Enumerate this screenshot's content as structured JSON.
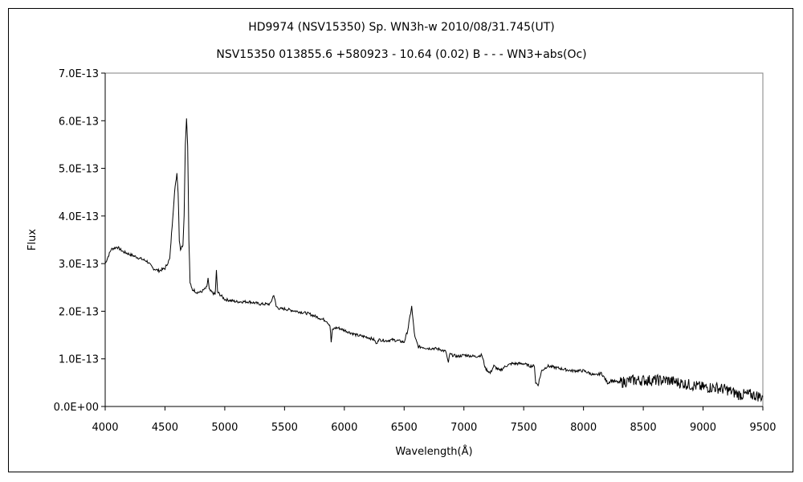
{
  "chart_data": {
    "type": "line",
    "title": "HD9974 (NSV15350)      Sp. WN3h-w    2010/08/31.745(UT)",
    "subtitle": "NSV15350 013855.6 +580923 - 10.64 (0.02) B - - - WN3+abs(Oc)",
    "xlabel": "Wavelength(Å)",
    "ylabel": "Flux",
    "xlim": [
      4000,
      9500
    ],
    "ylim": [
      0,
      7e-13
    ],
    "xticks": [
      "4000",
      "4500",
      "5000",
      "5500",
      "6000",
      "6500",
      "7000",
      "7500",
      "8000",
      "8500",
      "9000",
      "9500"
    ],
    "yticks": [
      "0.0E+00",
      "1.0E-13",
      "2.0E-13",
      "3.0E-13",
      "4.0E-13",
      "5.0E-13",
      "6.0E-13",
      "7.0E-13"
    ],
    "grid": false,
    "legend": "none",
    "line_color": "#000000",
    "series": [
      {
        "x": [
          4000,
          4050,
          4100,
          4150,
          4200,
          4250,
          4300,
          4350,
          4400,
          4450,
          4500,
          4540,
          4560,
          4580,
          4600,
          4610,
          4620,
          4630,
          4650,
          4660,
          4670,
          4680,
          4690,
          4700,
          4710,
          4720,
          4730,
          4740,
          4760,
          4800,
          4850,
          4860,
          4870,
          4890,
          4920,
          4930,
          4940,
          4960,
          5000,
          5100,
          5200,
          5300,
          5380,
          5410,
          5430,
          5460,
          5500,
          5600,
          5700,
          5750,
          5800,
          5850,
          5880,
          5890,
          5900,
          5920,
          5950,
          6000,
          6100,
          6200,
          6250,
          6270,
          6280,
          6300,
          6350,
          6400,
          6450,
          6500,
          6530,
          6550,
          6563,
          6575,
          6590,
          6620,
          6650,
          6700,
          6750,
          6800,
          6850,
          6870,
          6880,
          6900,
          6950,
          7000,
          7100,
          7150,
          7180,
          7200,
          7220,
          7250,
          7300,
          7350,
          7400,
          7500,
          7550,
          7590,
          7600,
          7620,
          7650,
          7700,
          7800,
          7900,
          8000,
          8100,
          8150,
          8200,
          8210,
          8230,
          8300,
          8400,
          8500,
          8600,
          8700,
          8800,
          8900,
          9000,
          9100,
          9200,
          9300,
          9400,
          9500
        ],
        "y": [
          3e-13,
          3.3e-13,
          3.35e-13,
          3.25e-13,
          3.2e-13,
          3.15e-13,
          3.1e-13,
          3.05e-13,
          2.9e-13,
          2.85e-13,
          2.9e-13,
          3.1e-13,
          3.8e-13,
          4.5e-13,
          4.9e-13,
          4.5e-13,
          3.5e-13,
          3.3e-13,
          3.4e-13,
          4e-13,
          5.5e-13,
          6.05e-13,
          5.5e-13,
          3.5e-13,
          2.6e-13,
          2.5e-13,
          2.45e-13,
          2.45e-13,
          2.4e-13,
          2.4e-13,
          2.5e-13,
          2.7e-13,
          2.45e-13,
          2.4e-13,
          2.35e-13,
          2.85e-13,
          2.4e-13,
          2.35e-13,
          2.25e-13,
          2.2e-13,
          2.2e-13,
          2.15e-13,
          2.15e-13,
          2.35e-13,
          2.1e-13,
          2.05e-13,
          2.05e-13,
          2e-13,
          1.95e-13,
          1.9e-13,
          1.85e-13,
          1.8e-13,
          1.7e-13,
          1.35e-13,
          1.6e-13,
          1.65e-13,
          1.65e-13,
          1.6e-13,
          1.5e-13,
          1.45e-13,
          1.4e-13,
          1.3e-13,
          1.4e-13,
          1.4e-13,
          1.38e-13,
          1.4e-13,
          1.38e-13,
          1.35e-13,
          1.6e-13,
          1.9e-13,
          2.1e-13,
          1.8e-13,
          1.45e-13,
          1.25e-13,
          1.25e-13,
          1.22e-13,
          1.22e-13,
          1.2e-13,
          1.15e-13,
          9e-14,
          1.1e-13,
          1.08e-13,
          1.05e-13,
          1.08e-13,
          1.05e-13,
          1.08e-13,
          8e-14,
          7.5e-14,
          7e-14,
          8.5e-14,
          7.5e-14,
          8.5e-14,
          9e-14,
          9e-14,
          8.5e-14,
          8.5e-14,
          5e-14,
          4.5e-14,
          7.5e-14,
          8.5e-14,
          8e-14,
          7.5e-14,
          7.5e-14,
          6.5e-14,
          7e-14,
          5e-14,
          5e-14,
          5.5e-14,
          5e-14,
          5.5e-14,
          5.5e-14,
          5.5e-14,
          5.5e-14,
          5e-14,
          4.5e-14,
          4e-14,
          4e-14,
          3.5e-14,
          2.5e-14,
          2.5e-14,
          2e-14
        ]
      }
    ]
  }
}
